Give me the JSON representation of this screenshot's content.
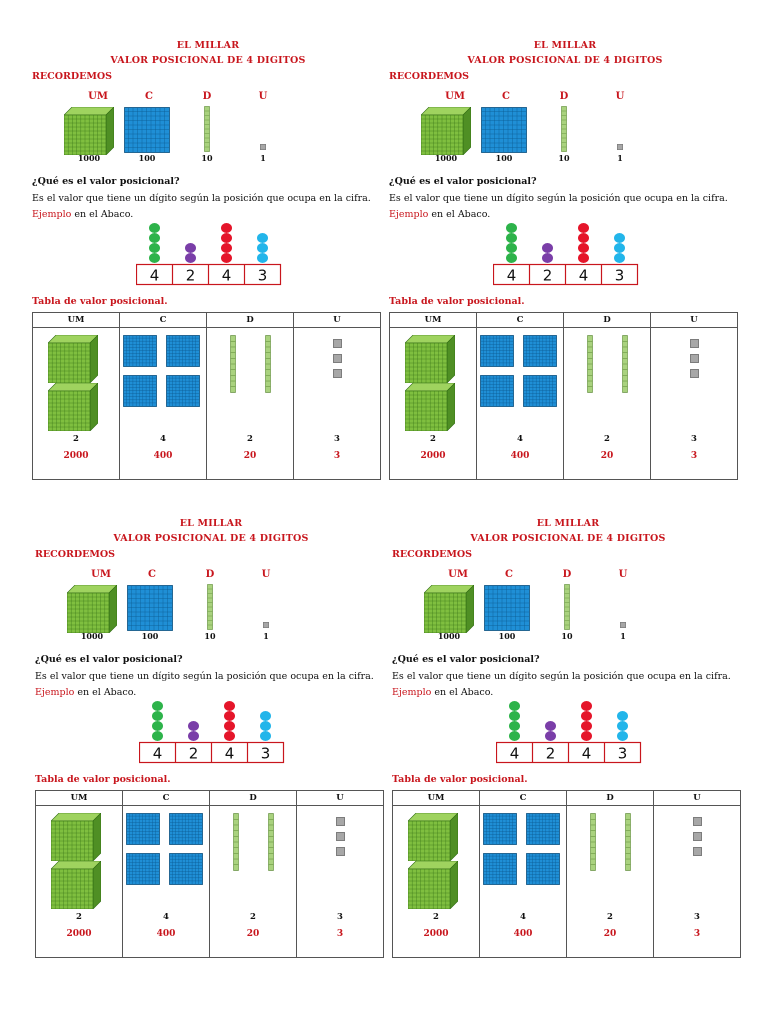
{
  "worksheet": {
    "title_line1": "EL MILLAR",
    "title_line2": "VALOR POSICIONAL DE 4 DIGITOS",
    "recordemos": "RECORDEMOS",
    "place_labels": [
      "UM",
      "C",
      "D",
      "U"
    ],
    "place_values": [
      "1000",
      "100",
      "10",
      "1"
    ],
    "question": "¿Qué es el valor posicional?",
    "definition": "Es el valor que tiene un dígito según la posición que ocupa en la cifra.",
    "example_word": "Ejemplo",
    "example_rest": " en el Abaco.",
    "abacus_digits": [
      "4",
      "2",
      "4",
      "3"
    ],
    "tabla_title": "Tabla de valor posicional.",
    "table_headers": [
      "UM",
      "C",
      "D",
      "U"
    ],
    "table_counts": [
      "2",
      "4",
      "2",
      "3"
    ],
    "table_values": [
      "2000",
      "400",
      "20",
      "3"
    ],
    "colors": {
      "heading_red": "#c8161d",
      "cube_green": "#7fbf3f",
      "flat_blue": "#1f8fd6",
      "rod_green": "#a9d27e",
      "unit_gray": "#a7a7a7",
      "bead_um": "#2db34a",
      "bead_c": "#7a3ea8",
      "bead_d": "#e5152a",
      "bead_u": "#22b5ea"
    },
    "icons": [
      "thousand-cube-icon",
      "hundred-flat-icon",
      "ten-rod-icon",
      "unit-cube-icon",
      "abacus-icon"
    ]
  }
}
